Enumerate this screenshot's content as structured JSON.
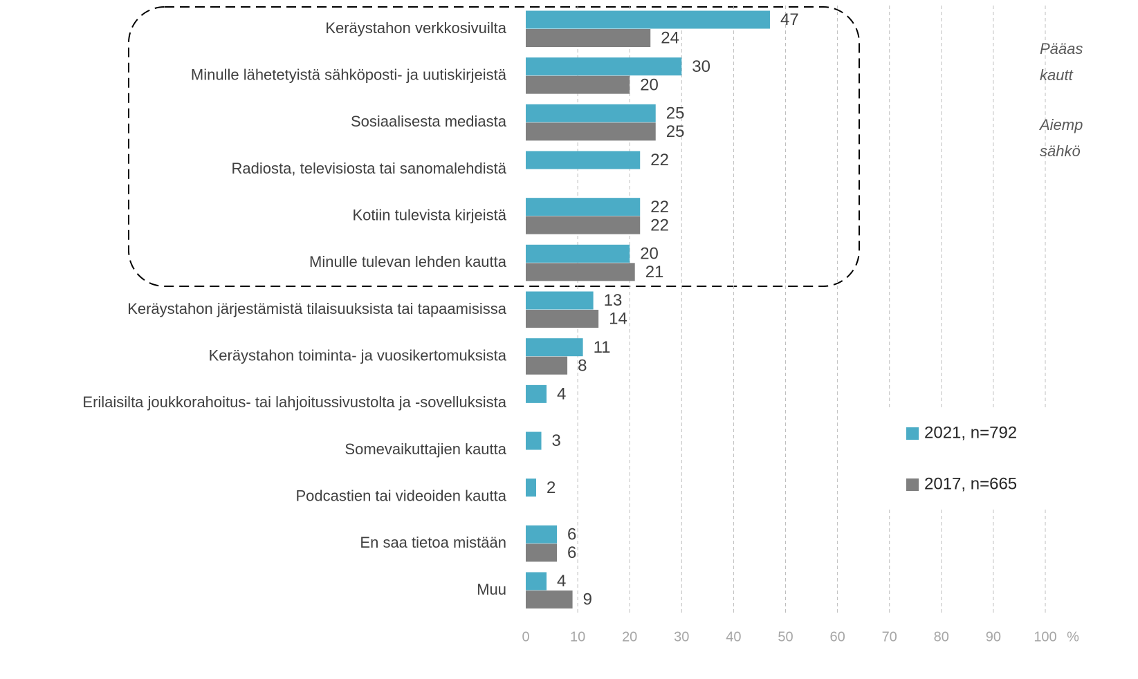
{
  "chart_data": {
    "type": "barh",
    "categories": [
      "Keräystahon verkkosivuilta",
      "Minulle lähetetyistä sähköposti- ja uutiskirjeistä",
      "Sosiaalisesta mediasta",
      "Radiosta, televisiosta tai sanomalehdistä",
      "Kotiin tulevista kirjeistä",
      "Minulle tulevan lehden kautta",
      "Keräystahon järjestämistä tilaisuuksista tai tapaamisissa",
      "Keräystahon toiminta- ja vuosikertomuksista",
      "Erilaisilta joukkorahoitus- tai lahjoitussivustolta ja -sovelluksista",
      "Somevaikuttajien kautta",
      "Podcastien tai videoiden kautta",
      "En saa tietoa mistään",
      "Muu"
    ],
    "series": [
      {
        "name": "2021, n=792",
        "color": "#4bacc6",
        "values": [
          47,
          30,
          25,
          22,
          22,
          20,
          13,
          11,
          4,
          3,
          2,
          6,
          4
        ]
      },
      {
        "name": "2017, n=665",
        "color": "#7f7f7f",
        "values": [
          24,
          20,
          25,
          null,
          22,
          21,
          14,
          8,
          null,
          null,
          null,
          6,
          9
        ]
      }
    ],
    "xlim": [
      0,
      100
    ],
    "xticks": [
      0,
      10,
      20,
      30,
      40,
      50,
      60,
      70,
      80,
      90,
      100
    ],
    "x_unit": "%",
    "grid": true,
    "legend": "right",
    "annotations": [
      "Pääas",
      "kautt",
      "Aiemp",
      "sähkö"
    ]
  }
}
